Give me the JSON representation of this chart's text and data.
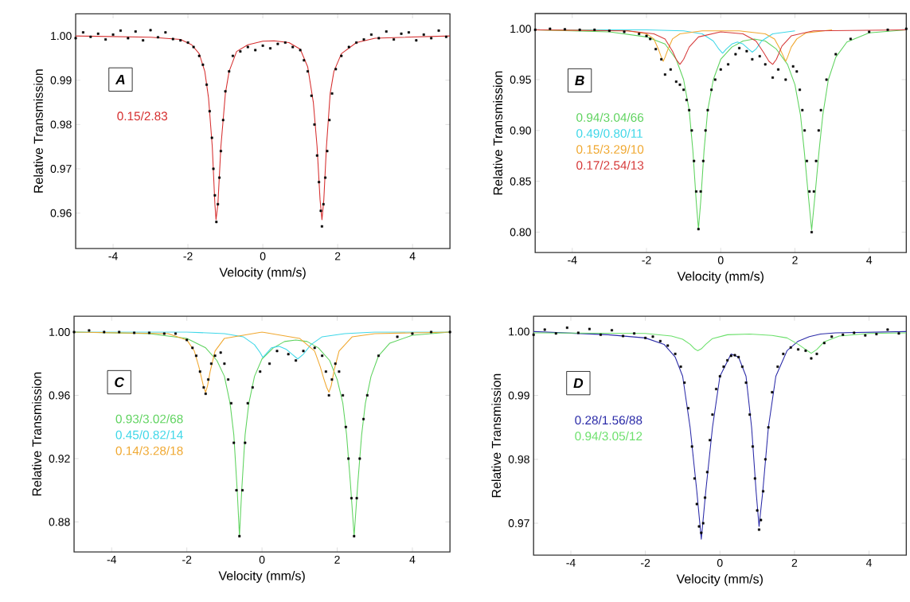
{
  "chart_data": [
    {
      "type": "line",
      "xlabel": "Velocity (mm/s)",
      "ylabel": "Relative Transmission",
      "annotations": [
        "A"
      ],
      "legend": "left",
      "xlim": [
        -5,
        5
      ],
      "ylim": [
        0.952,
        1.005
      ],
      "xticks": [
        -4,
        -2,
        0,
        2,
        4
      ],
      "yticks": [
        {
          "value": 0.96,
          "label": "0.96"
        },
        {
          "value": 0.97,
          "label": "0.97"
        },
        {
          "value": 0.98,
          "label": "0.98"
        },
        {
          "value": 0.99,
          "label": "0.99"
        },
        {
          "value": 1.0,
          "label": "1.00"
        }
      ],
      "series": [
        {
          "type": "scatter",
          "marker": "square",
          "color": "#000000",
          "x": [
            -5,
            -4.8,
            -4.6,
            -4.4,
            -4.2,
            -4.0,
            -3.8,
            -3.6,
            -3.4,
            -3.2,
            -3.0,
            -2.8,
            -2.6,
            -2.4,
            -2.2,
            -2.0,
            -1.85,
            -1.7,
            -1.6,
            -1.5,
            -1.42,
            -1.36,
            -1.32,
            -1.28,
            -1.24,
            -1.2,
            -1.16,
            -1.12,
            -1.06,
            -1.0,
            -0.9,
            -0.8,
            -0.6,
            -0.4,
            -0.2,
            0.0,
            0.2,
            0.4,
            0.6,
            0.8,
            1.0,
            1.1,
            1.2,
            1.3,
            1.38,
            1.45,
            1.5,
            1.55,
            1.58,
            1.62,
            1.67,
            1.72,
            1.78,
            1.85,
            1.95,
            2.1,
            2.3,
            2.5,
            2.7,
            2.9,
            3.1,
            3.3,
            3.5,
            3.7,
            3.9,
            4.1,
            4.3,
            4.5,
            4.7,
            4.9
          ],
          "values": [
            0.9995,
            1.0008,
            0.9998,
            1.0005,
            0.9992,
            1.0003,
            1.0012,
            0.9995,
            1.001,
            0.999,
            1.0013,
            0.9997,
            1.0008,
            0.9993,
            0.999,
            0.9985,
            0.9975,
            0.9955,
            0.9935,
            0.989,
            0.983,
            0.977,
            0.97,
            0.964,
            0.958,
            0.962,
            0.968,
            0.974,
            0.981,
            0.9875,
            0.992,
            0.9955,
            0.9965,
            0.9975,
            0.9968,
            0.9978,
            0.9972,
            0.9982,
            0.9985,
            0.9975,
            0.9968,
            0.9945,
            0.992,
            0.9865,
            0.98,
            0.973,
            0.967,
            0.9605,
            0.957,
            0.962,
            0.968,
            0.974,
            0.981,
            0.987,
            0.9925,
            0.9955,
            0.9975,
            0.9985,
            0.9992,
            1.0003,
            0.9995,
            1.001,
            0.9992,
            1.0005,
            1.0008,
            0.999,
            1.0003,
            0.9995,
            1.0012,
            0.9998
          ]
        },
        {
          "name": "0.15/2.83",
          "color": "#d62f2f",
          "x": [
            -5,
            -3,
            -2.2,
            -1.9,
            -1.7,
            -1.55,
            -1.45,
            -1.35,
            -1.28,
            -1.25,
            -1.2,
            -1.12,
            -1.0,
            -0.9,
            -0.7,
            -0.4,
            0,
            0.3,
            0.7,
            1.0,
            1.2,
            1.35,
            1.45,
            1.53,
            1.58,
            1.63,
            1.7,
            1.8,
            1.9,
            2.1,
            2.5,
            3,
            5
          ],
          "values": [
            1.0,
            0.9997,
            0.9992,
            0.998,
            0.996,
            0.992,
            0.986,
            0.975,
            0.962,
            0.9585,
            0.962,
            0.975,
            0.987,
            0.992,
            0.9965,
            0.998,
            0.9988,
            0.9989,
            0.9985,
            0.997,
            0.993,
            0.985,
            0.975,
            0.963,
            0.9585,
            0.963,
            0.975,
            0.987,
            0.992,
            0.996,
            0.9985,
            0.9995,
            1.0
          ]
        }
      ]
    },
    {
      "type": "line",
      "xlabel": "Velocity (mm/s)",
      "ylabel": "Relative Transmission",
      "annotations": [
        "B"
      ],
      "legend": "left",
      "xlim": [
        -5,
        5
      ],
      "ylim": [
        0.78,
        1.015
      ],
      "xticks": [
        -4,
        -2,
        0,
        2,
        4
      ],
      "yticks": [
        {
          "value": 0.8,
          "label": "0.80"
        },
        {
          "value": 0.85,
          "label": "0.85"
        },
        {
          "value": 0.9,
          "label": "0.90"
        },
        {
          "value": 0.95,
          "label": "0.95"
        },
        {
          "value": 1.0,
          "label": "1.00"
        }
      ],
      "series": [
        {
          "type": "scatter",
          "marker": "square",
          "color": "#000000",
          "x": [
            -5,
            -4.6,
            -4.2,
            -3.8,
            -3.4,
            -3.0,
            -2.6,
            -2.2,
            -2.0,
            -1.9,
            -1.75,
            -1.6,
            -1.5,
            -1.35,
            -1.2,
            -1.1,
            -1.0,
            -0.92,
            -0.85,
            -0.78,
            -0.72,
            -0.66,
            -0.6,
            -0.54,
            -0.47,
            -0.41,
            -0.35,
            -0.25,
            -0.15,
            0.0,
            0.2,
            0.4,
            0.5,
            0.7,
            0.85,
            1.05,
            1.2,
            1.4,
            1.55,
            1.75,
            1.95,
            2.05,
            2.13,
            2.2,
            2.26,
            2.32,
            2.39,
            2.45,
            2.51,
            2.57,
            2.64,
            2.7,
            2.85,
            3.1,
            3.5,
            4.0,
            4.5,
            5.0
          ],
          "values": [
            0.999,
            1.0,
            0.9995,
            0.999,
            0.999,
            0.998,
            0.997,
            0.995,
            0.993,
            0.99,
            0.98,
            0.97,
            0.955,
            0.96,
            0.948,
            0.945,
            0.94,
            0.93,
            0.92,
            0.9,
            0.87,
            0.84,
            0.803,
            0.84,
            0.87,
            0.9,
            0.92,
            0.94,
            0.95,
            0.96,
            0.965,
            0.975,
            0.981,
            0.978,
            0.97,
            0.973,
            0.965,
            0.952,
            0.96,
            0.95,
            0.963,
            0.958,
            0.94,
            0.92,
            0.9,
            0.87,
            0.84,
            0.8,
            0.84,
            0.87,
            0.9,
            0.92,
            0.95,
            0.975,
            0.99,
            0.997,
            0.999,
            1.0
          ]
        },
        {
          "name": "0.94/3.04/66",
          "color": "#5fd35f",
          "x": [
            -5,
            -3,
            -2.0,
            -1.5,
            -1.2,
            -1.0,
            -0.85,
            -0.75,
            -0.66,
            -0.6,
            -0.54,
            -0.45,
            -0.35,
            -0.2,
            0.0,
            0.3,
            0.6,
            0.9,
            1.2,
            1.5,
            1.8,
            2.0,
            2.15,
            2.25,
            2.35,
            2.45,
            2.55,
            2.65,
            2.75,
            2.9,
            3.1,
            3.4,
            4,
            5
          ],
          "values": [
            0.999,
            0.997,
            0.992,
            0.985,
            0.97,
            0.95,
            0.92,
            0.88,
            0.83,
            0.803,
            0.83,
            0.88,
            0.92,
            0.95,
            0.97,
            0.982,
            0.988,
            0.99,
            0.988,
            0.98,
            0.965,
            0.945,
            0.915,
            0.88,
            0.84,
            0.802,
            0.84,
            0.88,
            0.915,
            0.95,
            0.972,
            0.987,
            0.996,
            0.999
          ]
        },
        {
          "name": "0.49/0.80/11",
          "color": "#3fd7e8",
          "x": [
            -5,
            -2,
            -1,
            -0.5,
            -0.2,
            -0.05,
            0.05,
            0.15,
            0.3,
            0.45,
            0.6,
            0.75,
            0.85,
            0.95,
            1.1,
            1.4,
            2
          ],
          "values": [
            0.999,
            0.999,
            0.998,
            0.995,
            0.988,
            0.98,
            0.976,
            0.98,
            0.985,
            0.987,
            0.985,
            0.98,
            0.977,
            0.98,
            0.988,
            0.995,
            0.998
          ]
        },
        {
          "name": "0.15/3.29/10",
          "color": "#f0a830",
          "x": [
            -5,
            -2.5,
            -2.0,
            -1.8,
            -1.68,
            -1.6,
            -1.55,
            -1.5,
            -1.42,
            -1.3,
            -1.1,
            -0.5,
            0.5,
            1.2,
            1.45,
            1.6,
            1.7,
            1.75,
            1.8,
            1.9,
            2.05,
            2.3,
            3
          ],
          "values": [
            0.999,
            0.998,
            0.995,
            0.99,
            0.98,
            0.972,
            0.968,
            0.972,
            0.98,
            0.99,
            0.995,
            0.998,
            0.998,
            0.995,
            0.99,
            0.98,
            0.972,
            0.968,
            0.972,
            0.982,
            0.99,
            0.996,
            0.999
          ]
        },
        {
          "name": "0.17/2.54/13",
          "color": "#d63a3a",
          "x": [
            -5,
            -2.5,
            -1.8,
            -1.5,
            -1.3,
            -1.2,
            -1.1,
            -1.0,
            -0.85,
            -0.6,
            0,
            0.6,
            0.95,
            1.15,
            1.3,
            1.4,
            1.5,
            1.65,
            1.9,
            2.5,
            5
          ],
          "values": [
            0.999,
            0.998,
            0.995,
            0.99,
            0.978,
            0.97,
            0.965,
            0.97,
            0.982,
            0.992,
            0.997,
            0.995,
            0.988,
            0.977,
            0.968,
            0.965,
            0.97,
            0.983,
            0.993,
            0.998,
            0.999
          ]
        }
      ]
    },
    {
      "type": "line",
      "xlabel": "Velocity (mm/s)",
      "ylabel": "Relative Transmission",
      "annotations": [
        "C"
      ],
      "legend": "left",
      "xlim": [
        -5,
        5
      ],
      "ylim": [
        0.861,
        1.01
      ],
      "xticks": [
        -4,
        -2,
        0,
        2,
        4
      ],
      "yticks": [
        {
          "value": 0.88,
          "label": "0.88"
        },
        {
          "value": 0.92,
          "label": "0.92"
        },
        {
          "value": 0.96,
          "label": "0.96"
        },
        {
          "value": 1.0,
          "label": "1.00"
        }
      ],
      "series": [
        {
          "type": "scatter",
          "marker": "square",
          "color": "#000000",
          "x": [
            -5,
            -4.6,
            -4.2,
            -3.8,
            -3.4,
            -3.0,
            -2.6,
            -2.3,
            -2.0,
            -1.85,
            -1.75,
            -1.65,
            -1.55,
            -1.5,
            -1.43,
            -1.35,
            -1.25,
            -1.1,
            -1.0,
            -0.9,
            -0.82,
            -0.75,
            -0.68,
            -0.6,
            -0.52,
            -0.45,
            -0.38,
            -0.25,
            -0.05,
            0.2,
            0.4,
            0.7,
            0.9,
            1.1,
            1.4,
            1.6,
            1.7,
            1.78,
            1.86,
            1.95,
            2.05,
            2.15,
            2.23,
            2.3,
            2.38,
            2.45,
            2.52,
            2.6,
            2.7,
            2.8,
            3.1,
            3.6,
            4.0,
            4.5,
            5.0
          ],
          "values": [
            1.0,
            1.001,
            1.0,
            1.0,
            0.9995,
            0.9995,
            0.999,
            0.999,
            0.995,
            0.99,
            0.985,
            0.975,
            0.965,
            0.961,
            0.97,
            0.98,
            0.985,
            0.987,
            0.98,
            0.97,
            0.955,
            0.93,
            0.9,
            0.871,
            0.9,
            0.93,
            0.955,
            0.965,
            0.975,
            0.98,
            0.988,
            0.986,
            0.982,
            0.988,
            0.99,
            0.985,
            0.975,
            0.96,
            0.97,
            0.98,
            0.975,
            0.96,
            0.94,
            0.92,
            0.895,
            0.871,
            0.895,
            0.92,
            0.945,
            0.96,
            0.985,
            0.997,
            0.999,
            1.0,
            1.0
          ]
        },
        {
          "name": "0.93/3.02/68",
          "color": "#5fd35f",
          "x": [
            -5,
            -3,
            -2.0,
            -1.5,
            -1.2,
            -1.0,
            -0.85,
            -0.75,
            -0.66,
            -0.6,
            -0.54,
            -0.45,
            -0.35,
            -0.2,
            0.0,
            0.3,
            0.6,
            0.9,
            1.2,
            1.5,
            1.8,
            2.0,
            2.15,
            2.25,
            2.35,
            2.45,
            2.55,
            2.65,
            2.75,
            2.9,
            3.1,
            3.4,
            4,
            5
          ],
          "values": [
            1.0,
            0.999,
            0.996,
            0.99,
            0.982,
            0.972,
            0.955,
            0.935,
            0.9,
            0.871,
            0.9,
            0.935,
            0.955,
            0.972,
            0.983,
            0.99,
            0.994,
            0.995,
            0.994,
            0.99,
            0.982,
            0.97,
            0.955,
            0.935,
            0.905,
            0.871,
            0.905,
            0.935,
            0.955,
            0.972,
            0.985,
            0.993,
            0.998,
            1.0
          ]
        },
        {
          "name": "0.45/0.82/14",
          "color": "#3fd7e8",
          "x": [
            -5,
            -2,
            -1,
            -0.5,
            -0.2,
            -0.05,
            0.02,
            0.1,
            0.25,
            0.45,
            0.65,
            0.8,
            0.95,
            1.1,
            1.3,
            1.6,
            2.2,
            3,
            5
          ],
          "values": [
            1.0,
            1.0,
            0.999,
            0.997,
            0.992,
            0.987,
            0.984,
            0.986,
            0.99,
            0.991,
            0.989,
            0.986,
            0.983,
            0.986,
            0.992,
            0.997,
            0.999,
            1.0,
            1.0
          ]
        },
        {
          "name": "0.14/3.28/18",
          "color": "#f0a830",
          "x": [
            -5,
            -2.5,
            -2.0,
            -1.8,
            -1.68,
            -1.6,
            -1.55,
            -1.5,
            -1.45,
            -1.38,
            -1.25,
            -1.0,
            0,
            1.0,
            1.4,
            1.55,
            1.65,
            1.72,
            1.78,
            1.84,
            1.92,
            2.05,
            2.4,
            3,
            5
          ],
          "values": [
            1.0,
            0.999,
            0.995,
            0.988,
            0.978,
            0.97,
            0.965,
            0.962,
            0.966,
            0.975,
            0.988,
            0.996,
            1.0,
            0.996,
            0.988,
            0.978,
            0.97,
            0.965,
            0.962,
            0.966,
            0.976,
            0.988,
            0.997,
            0.999,
            1.0
          ]
        }
      ]
    },
    {
      "type": "line",
      "xlabel": "Velocity (mm/s)",
      "ylabel": "Relative Transmission",
      "annotations": [
        "D"
      ],
      "legend": "left",
      "xlim": [
        -5,
        5
      ],
      "ylim": [
        0.965,
        1.0024
      ],
      "xticks": [
        -4,
        -2,
        0,
        2,
        4
      ],
      "yticks": [
        {
          "value": 0.97,
          "label": "0.97"
        },
        {
          "value": 0.98,
          "label": "0.98"
        },
        {
          "value": 0.99,
          "label": "0.99"
        },
        {
          "value": 1.0,
          "label": "1.00"
        }
      ],
      "series": [
        {
          "type": "scatter",
          "marker": "square",
          "color": "#000000",
          "x": [
            -5,
            -4.7,
            -4.4,
            -4.1,
            -3.8,
            -3.5,
            -3.2,
            -2.9,
            -2.6,
            -2.3,
            -2.0,
            -1.8,
            -1.6,
            -1.4,
            -1.2,
            -1.05,
            -0.95,
            -0.85,
            -0.75,
            -0.68,
            -0.62,
            -0.56,
            -0.5,
            -0.45,
            -0.4,
            -0.34,
            -0.27,
            -0.2,
            -0.1,
            0.0,
            0.1,
            0.2,
            0.3,
            0.4,
            0.5,
            0.6,
            0.7,
            0.8,
            0.88,
            0.94,
            1.0,
            1.05,
            1.1,
            1.16,
            1.22,
            1.3,
            1.4,
            1.55,
            1.7,
            1.9,
            2.1,
            2.3,
            2.45,
            2.6,
            2.8,
            3.0,
            3.3,
            3.6,
            3.9,
            4.2,
            4.5,
            4.8
          ],
          "values": [
            0.9995,
            1.0003,
            0.9997,
            1.0006,
            0.9998,
            1.0004,
            0.9995,
            1.0002,
            0.9993,
            0.9997,
            0.999,
            0.9992,
            0.9985,
            0.9978,
            0.9965,
            0.9945,
            0.992,
            0.988,
            0.982,
            0.977,
            0.973,
            0.9695,
            0.9685,
            0.97,
            0.974,
            0.978,
            0.983,
            0.987,
            0.991,
            0.993,
            0.9945,
            0.9955,
            0.9962,
            0.9963,
            0.996,
            0.9945,
            0.992,
            0.987,
            0.982,
            0.977,
            0.972,
            0.969,
            0.9705,
            0.975,
            0.98,
            0.985,
            0.9905,
            0.9945,
            0.9965,
            0.9975,
            0.9972,
            0.997,
            0.9958,
            0.9965,
            0.9982,
            0.9992,
            0.9995,
            0.9998,
            0.9994,
            0.9996,
            1.0003,
            0.9997
          ]
        },
        {
          "name": "0.28/1.56/88",
          "color": "#2b2ba8",
          "x": [
            -5,
            -3,
            -2,
            -1.5,
            -1.2,
            -1.0,
            -0.8,
            -0.62,
            -0.5,
            -0.38,
            -0.2,
            0.0,
            0.3,
            0.5,
            0.7,
            0.85,
            0.97,
            1.05,
            1.15,
            1.3,
            1.5,
            1.8,
            2.1,
            2.4,
            2.7,
            3.1,
            5
          ],
          "values": [
            1.0,
            0.9995,
            0.999,
            0.998,
            0.996,
            0.993,
            0.985,
            0.975,
            0.9675,
            0.975,
            0.985,
            0.993,
            0.9965,
            0.996,
            0.993,
            0.985,
            0.975,
            0.9695,
            0.975,
            0.985,
            0.993,
            0.997,
            0.9985,
            0.9992,
            0.9996,
            0.9998,
            1.0
          ]
        },
        {
          "name": "0.94/3.05/12",
          "color": "#6be06b",
          "x": [
            -5,
            -2,
            -1.3,
            -1.0,
            -0.8,
            -0.68,
            -0.6,
            -0.5,
            -0.38,
            -0.2,
            0.2,
            0.8,
            1.4,
            1.8,
            2.1,
            2.3,
            2.45,
            2.6,
            2.8,
            3.2,
            4,
            5
          ],
          "values": [
            0.9998,
            0.9997,
            0.9993,
            0.9988,
            0.998,
            0.9973,
            0.997,
            0.9973,
            0.998,
            0.9989,
            0.9995,
            0.9996,
            0.9994,
            0.999,
            0.998,
            0.9972,
            0.9966,
            0.9972,
            0.9984,
            0.9993,
            0.9997,
            0.9998
          ]
        }
      ]
    }
  ]
}
